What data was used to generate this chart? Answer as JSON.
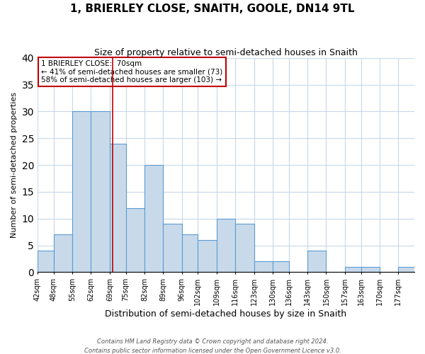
{
  "title": "1, BRIERLEY CLOSE, SNAITH, GOOLE, DN14 9TL",
  "subtitle": "Size of property relative to semi-detached houses in Snaith",
  "xlabel": "Distribution of semi-detached houses by size in Snaith",
  "ylabel": "Number of semi-detached properties",
  "bin_labels": [
    "42sqm",
    "48sqm",
    "55sqm",
    "62sqm",
    "69sqm",
    "75sqm",
    "82sqm",
    "89sqm",
    "96sqm",
    "102sqm",
    "109sqm",
    "116sqm",
    "123sqm",
    "130sqm",
    "136sqm",
    "143sqm",
    "150sqm",
    "157sqm",
    "163sqm",
    "170sqm",
    "177sqm"
  ],
  "bin_edges": [
    42,
    48,
    55,
    62,
    69,
    75,
    82,
    89,
    96,
    102,
    109,
    116,
    123,
    130,
    136,
    143,
    150,
    157,
    163,
    170,
    177,
    183
  ],
  "counts": [
    4,
    7,
    30,
    30,
    24,
    12,
    20,
    9,
    7,
    6,
    10,
    9,
    2,
    2,
    0,
    4,
    0,
    1,
    1,
    0,
    1
  ],
  "property_size": 70,
  "bar_color": "#c8daea",
  "bar_edge_color": "#5b9bd5",
  "vline_color": "#c00000",
  "annotation_line1": "1 BRIERLEY CLOSE:  70sqm",
  "annotation_line2": "← 41% of semi-detached houses are smaller (73)",
  "annotation_line3": "58% of semi-detached houses are larger (103) →",
  "annotation_box_color": "#ffffff",
  "annotation_box_edge_color": "#c00000",
  "ylim": [
    0,
    40
  ],
  "yticks": [
    0,
    5,
    10,
    15,
    20,
    25,
    30,
    35,
    40
  ],
  "bg_color": "#ffffff",
  "grid_color": "#c8d8e8",
  "footer1": "Contains HM Land Registry data © Crown copyright and database right 2024.",
  "footer2": "Contains public sector information licensed under the Open Government Licence v3.0."
}
